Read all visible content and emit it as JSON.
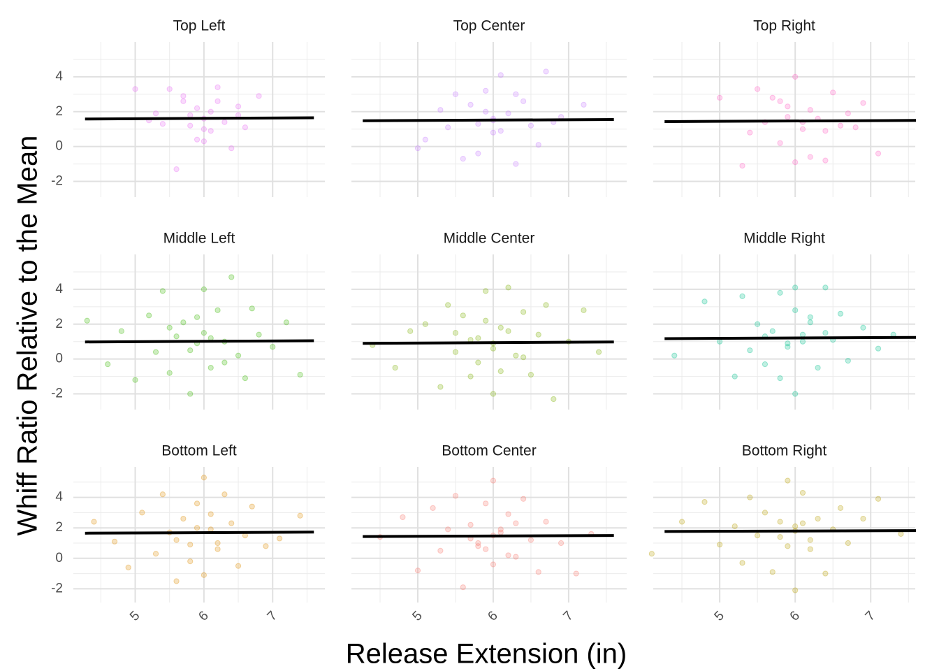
{
  "xlabel": "Release Extension (in)",
  "ylabel": "Whiff Ratio Relative to the Mean",
  "chart_data": [
    {
      "type": "scatter",
      "title": "Top Left",
      "color": "#e76bf3",
      "x": [
        5.0,
        5.3,
        5.5,
        5.7,
        5.8,
        5.9,
        6.0,
        6.0,
        6.1,
        6.2,
        6.3,
        6.4,
        6.5,
        6.6,
        6.8,
        5.6,
        5.9,
        6.2,
        5.4,
        6.1,
        5.8,
        6.5,
        5.2,
        6.0,
        5.7
      ],
      "y": [
        3.3,
        1.9,
        3.3,
        2.9,
        1.2,
        2.2,
        1.6,
        0.3,
        2.0,
        3.4,
        1.4,
        -0.1,
        1.8,
        1.1,
        2.9,
        -1.3,
        0.4,
        2.6,
        1.3,
        0.9,
        1.8,
        2.3,
        1.5,
        1.0,
        2.6
      ],
      "trend_x": [
        4.27,
        7.6
      ],
      "trend_y": [
        1.58,
        1.65
      ],
      "xlim": [
        4.1,
        7.76
      ],
      "ylim": [
        -2.9,
        6.0
      ],
      "xticks": [
        5,
        6,
        7
      ],
      "yticks": [
        -2,
        0,
        2,
        4
      ]
    },
    {
      "type": "scatter",
      "title": "Top Center",
      "color": "#c77cff",
      "x": [
        5.0,
        5.1,
        5.3,
        5.5,
        5.6,
        5.7,
        5.8,
        5.9,
        6.0,
        6.0,
        6.1,
        6.2,
        6.3,
        6.4,
        6.5,
        6.6,
        6.7,
        6.9,
        7.2,
        5.4,
        5.8,
        6.0,
        6.3,
        5.9,
        6.1,
        6.8
      ],
      "y": [
        -0.1,
        0.4,
        2.1,
        3.0,
        -0.7,
        2.4,
        1.3,
        3.2,
        1.6,
        0.8,
        4.1,
        1.9,
        -1.0,
        2.6,
        1.2,
        0.1,
        4.3,
        1.7,
        2.4,
        1.1,
        -0.4,
        1.5,
        3.0,
        2.0,
        0.9,
        1.4
      ],
      "trend_x": [
        4.27,
        7.6
      ],
      "trend_y": [
        1.48,
        1.55
      ],
      "xlim": [
        4.12,
        7.77
      ],
      "ylim": [
        -2.9,
        6.0
      ],
      "xticks": [
        5,
        6,
        7
      ],
      "yticks": [
        -2,
        0,
        2,
        4
      ]
    },
    {
      "type": "scatter",
      "title": "Top Right",
      "color": "#ff61c3",
      "x": [
        5.0,
        5.3,
        5.5,
        5.6,
        5.7,
        5.8,
        5.9,
        6.0,
        6.0,
        6.1,
        6.2,
        6.3,
        6.4,
        6.5,
        6.6,
        6.7,
        6.9,
        7.1,
        5.4,
        5.9,
        6.2,
        6.4,
        5.8,
        6.1,
        6.8
      ],
      "y": [
        2.8,
        -1.1,
        3.3,
        1.4,
        2.8,
        0.2,
        2.3,
        4.0,
        -0.9,
        1.0,
        2.1,
        1.6,
        -0.8,
        3.1,
        1.2,
        1.9,
        2.5,
        -0.4,
        0.8,
        1.7,
        -0.6,
        0.9,
        2.6,
        1.4,
        1.1
      ],
      "trend_x": [
        4.27,
        7.6
      ],
      "trend_y": [
        1.43,
        1.5
      ],
      "xlim": [
        4.12,
        7.59
      ],
      "ylim": [
        -2.9,
        6.0
      ],
      "xticks": [
        5,
        6,
        7
      ],
      "yticks": [
        -2,
        0,
        2,
        4
      ]
    },
    {
      "type": "scatter",
      "title": "Middle Left",
      "color": "#39b600",
      "x": [
        4.3,
        4.6,
        4.8,
        5.0,
        5.2,
        5.3,
        5.4,
        5.5,
        5.6,
        5.7,
        5.8,
        5.9,
        6.0,
        6.0,
        6.1,
        6.2,
        6.3,
        6.4,
        6.5,
        6.6,
        6.7,
        6.8,
        7.0,
        7.2,
        7.4,
        5.5,
        5.8,
        6.1,
        6.3,
        5.9
      ],
      "y": [
        2.2,
        -0.3,
        1.6,
        -1.2,
        2.5,
        0.4,
        3.9,
        -0.8,
        1.3,
        2.1,
        -2.0,
        0.9,
        4.0,
        1.5,
        -0.5,
        2.8,
        1.0,
        4.7,
        0.2,
        -1.1,
        2.9,
        1.4,
        0.7,
        2.1,
        -0.9,
        1.8,
        0.5,
        1.2,
        -0.2,
        2.4
      ],
      "trend_x": [
        4.27,
        7.6
      ],
      "trend_y": [
        0.98,
        1.05
      ],
      "xlim": [
        4.1,
        7.76
      ],
      "ylim": [
        -2.9,
        6.0
      ],
      "xticks": [
        5,
        6,
        7
      ],
      "yticks": [
        -2,
        0,
        2,
        4
      ]
    },
    {
      "type": "scatter",
      "title": "Middle Center",
      "color": "#7cae00",
      "x": [
        4.4,
        4.7,
        4.9,
        5.1,
        5.3,
        5.4,
        5.5,
        5.6,
        5.7,
        5.8,
        5.9,
        6.0,
        6.0,
        6.1,
        6.2,
        6.3,
        6.4,
        6.5,
        6.6,
        6.7,
        6.8,
        7.0,
        7.2,
        7.4,
        5.5,
        5.8,
        6.0,
        6.2,
        6.4,
        5.9,
        6.1,
        5.7
      ],
      "y": [
        0.8,
        -0.5,
        1.6,
        2.0,
        -1.6,
        3.1,
        0.4,
        2.5,
        -1.0,
        1.2,
        3.9,
        0.6,
        -2.0,
        1.8,
        4.1,
        0.2,
        2.7,
        -0.9,
        1.4,
        3.1,
        -2.3,
        1.0,
        2.8,
        0.4,
        1.5,
        -0.2,
        0.9,
        1.6,
        0.1,
        2.2,
        -0.7,
        1.1
      ],
      "trend_x": [
        4.27,
        7.6
      ],
      "trend_y": [
        0.9,
        0.98
      ],
      "xlim": [
        4.12,
        7.77
      ],
      "ylim": [
        -2.9,
        6.0
      ],
      "xticks": [
        5,
        6,
        7
      ],
      "yticks": [
        -2,
        0,
        2,
        4
      ]
    },
    {
      "type": "scatter",
      "title": "Middle Right",
      "color": "#00c08b",
      "x": [
        4.4,
        4.8,
        5.0,
        5.2,
        5.3,
        5.4,
        5.5,
        5.6,
        5.7,
        5.8,
        5.9,
        6.0,
        6.0,
        6.1,
        6.2,
        6.3,
        6.4,
        6.5,
        6.6,
        6.7,
        6.9,
        7.1,
        7.3,
        5.6,
        5.9,
        6.2,
        6.4,
        5.8,
        6.1,
        6.0
      ],
      "y": [
        0.2,
        3.3,
        1.0,
        -1.0,
        3.6,
        0.5,
        2.0,
        -0.3,
        1.6,
        3.8,
        0.9,
        4.1,
        -2.0,
        1.4,
        2.4,
        -0.5,
        4.1,
        1.1,
        2.6,
        -0.1,
        1.8,
        0.6,
        1.4,
        1.3,
        0.7,
        2.1,
        1.5,
        -1.1,
        1.0,
        2.8
      ],
      "trend_x": [
        4.27,
        7.6
      ],
      "trend_y": [
        1.17,
        1.24
      ],
      "xlim": [
        4.12,
        7.59
      ],
      "ylim": [
        -2.9,
        6.0
      ],
      "xticks": [
        5,
        6,
        7
      ],
      "yticks": [
        -2,
        0,
        2,
        4
      ]
    },
    {
      "type": "scatter",
      "title": "Bottom Left",
      "color": "#de8c00",
      "x": [
        4.4,
        4.7,
        4.9,
        5.1,
        5.3,
        5.4,
        5.5,
        5.6,
        5.7,
        5.8,
        5.9,
        6.0,
        6.0,
        6.1,
        6.2,
        6.3,
        6.4,
        6.5,
        6.6,
        6.7,
        6.9,
        7.1,
        7.4,
        5.6,
        5.9,
        6.2,
        5.8,
        6.1
      ],
      "y": [
        2.4,
        1.1,
        -0.6,
        3.0,
        0.3,
        4.2,
        1.7,
        -1.5,
        2.6,
        0.9,
        3.6,
        5.3,
        -1.1,
        1.9,
        0.6,
        4.2,
        2.3,
        -0.5,
        1.5,
        3.4,
        0.8,
        1.3,
        2.8,
        1.2,
        2.0,
        1.0,
        -0.2,
        2.9
      ],
      "trend_x": [
        4.27,
        7.6
      ],
      "trend_y": [
        1.65,
        1.72
      ],
      "xlim": [
        4.1,
        7.76
      ],
      "ylim": [
        -2.9,
        6.0
      ],
      "xticks": [
        5,
        6,
        7
      ],
      "yticks": [
        -2,
        0,
        2,
        4
      ]
    },
    {
      "type": "scatter",
      "title": "Bottom Center",
      "color": "#f8766d",
      "x": [
        4.5,
        4.8,
        5.0,
        5.2,
        5.3,
        5.4,
        5.5,
        5.6,
        5.7,
        5.8,
        5.9,
        6.0,
        6.0,
        6.1,
        6.2,
        6.3,
        6.4,
        6.5,
        6.6,
        6.7,
        6.9,
        7.1,
        7.3,
        5.7,
        5.9,
        6.1,
        6.3,
        5.8,
        6.0,
        6.2
      ],
      "y": [
        1.4,
        2.7,
        -0.8,
        3.3,
        0.5,
        1.9,
        4.1,
        -1.9,
        2.2,
        0.8,
        3.6,
        5.1,
        -0.4,
        1.7,
        2.9,
        0.1,
        3.9,
        1.2,
        -0.9,
        2.4,
        1.0,
        -1.0,
        1.6,
        1.3,
        0.6,
        1.9,
        2.3,
        1.0,
        1.5,
        0.2
      ],
      "trend_x": [
        4.27,
        7.6
      ],
      "trend_y": [
        1.43,
        1.5
      ],
      "xlim": [
        4.12,
        7.77
      ],
      "ylim": [
        -2.9,
        6.0
      ],
      "xticks": [
        5,
        6,
        7
      ],
      "yticks": [
        -2,
        0,
        2,
        4
      ]
    },
    {
      "type": "scatter",
      "title": "Bottom Right",
      "color": "#b79f00",
      "x": [
        4.1,
        4.5,
        4.8,
        5.0,
        5.2,
        5.3,
        5.4,
        5.5,
        5.6,
        5.7,
        5.8,
        5.9,
        6.0,
        6.0,
        6.1,
        6.2,
        6.3,
        6.4,
        6.5,
        6.6,
        6.7,
        6.9,
        7.1,
        7.4,
        5.8,
        6.0,
        6.2,
        5.9,
        6.1
      ],
      "y": [
        0.3,
        2.4,
        3.7,
        0.9,
        2.1,
        -0.3,
        4.0,
        1.5,
        3.0,
        -0.9,
        2.4,
        5.1,
        -2.1,
        1.8,
        4.3,
        0.6,
        2.6,
        -1.0,
        1.9,
        3.3,
        1.0,
        2.6,
        3.9,
        1.6,
        1.4,
        2.1,
        1.2,
        0.8,
        2.3
      ],
      "trend_x": [
        4.27,
        7.6
      ],
      "trend_y": [
        1.76,
        1.82
      ],
      "xlim": [
        4.12,
        7.59
      ],
      "ylim": [
        -2.9,
        6.0
      ],
      "xticks": [
        5,
        6,
        7
      ],
      "yticks": [
        -2,
        0,
        2,
        4
      ]
    }
  ]
}
